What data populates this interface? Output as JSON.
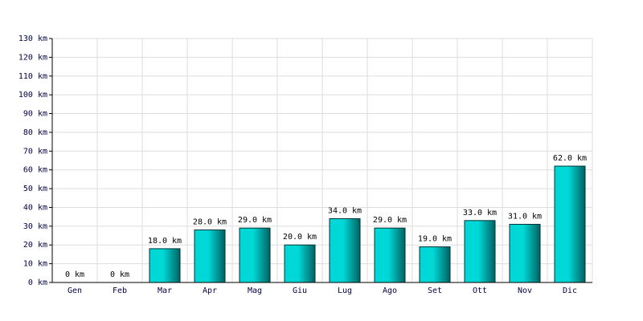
{
  "chart_data": {
    "type": "bar",
    "categories": [
      "Gen",
      "Feb",
      "Mar",
      "Apr",
      "Mag",
      "Giu",
      "Lug",
      "Ago",
      "Set",
      "Ott",
      "Nov",
      "Dic"
    ],
    "values": [
      0,
      0,
      18,
      28,
      29,
      20,
      34,
      29,
      19,
      33,
      31,
      62
    ],
    "value_labels": [
      "0 km",
      "0 km",
      "18.0 km",
      "28.0 km",
      "29.0 km",
      "20.0 km",
      "34.0 km",
      "29.0 km",
      "19.0 km",
      "33.0 km",
      "31.0 km",
      "62.0 km"
    ],
    "color": "#00d8d8",
    "ylim": [
      0,
      130
    ],
    "yticks": [
      {
        "value": 0,
        "label": "0 km"
      },
      {
        "value": 10,
        "label": "10 km"
      },
      {
        "value": 20,
        "label": "20 km"
      },
      {
        "value": 30,
        "label": "30 km"
      },
      {
        "value": 40,
        "label": "40 km"
      },
      {
        "value": 50,
        "label": "50 km"
      },
      {
        "value": 60,
        "label": "60 km"
      },
      {
        "value": 70,
        "label": "70 km"
      },
      {
        "value": 80,
        "label": "80 km"
      },
      {
        "value": 90,
        "label": "90 km"
      },
      {
        "value": 100,
        "label": "100 km"
      },
      {
        "value": 110,
        "label": "110 km"
      },
      {
        "value": 120,
        "label": "120 km"
      },
      {
        "value": 130,
        "label": "130 km"
      }
    ],
    "grid": true
  }
}
